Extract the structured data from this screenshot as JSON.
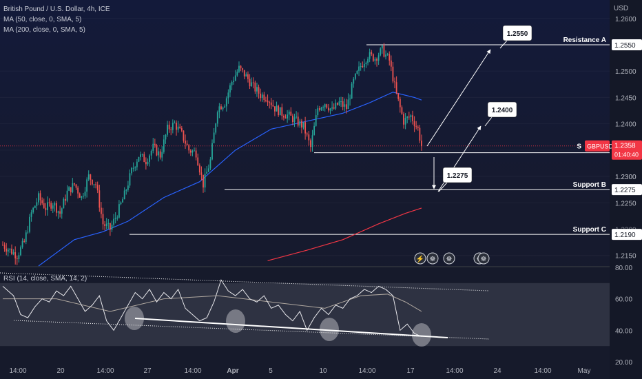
{
  "legend": {
    "title": "British Pound / U.S. Dollar, 4h, ICE",
    "ma50": "MA (50, close, 0, SMA, 5)",
    "ma200": "MA (200, close, 0, SMA, 5)"
  },
  "rsi_legend": "RSI (14, close, SMA, 14, 2)",
  "currency": "USD",
  "colors": {
    "bull": "#26a69a",
    "bear": "#ef5350",
    "ma50": "#2962ff",
    "ma200": "#f23645",
    "level": "#ffffff",
    "price_badge": "#f23645"
  },
  "chart_data": [
    {
      "type": "candlestick",
      "title": "British Pound / U.S. Dollar, 4h, ICE",
      "ylim": [
        1.213,
        1.2635
      ],
      "y_ticks": [
        1.215,
        1.225,
        1.23,
        1.235,
        1.24,
        1.245,
        1.25,
        1.26
      ],
      "x_ticks": [
        "14:00",
        "20",
        "14:00",
        "27",
        "14:00",
        "Apr",
        "5",
        "10",
        "14:00",
        "17",
        "14:00",
        "24",
        "14:00",
        "May"
      ],
      "current_price": {
        "symbol": "GBPUSD",
        "value": "1.2358",
        "countdown": "01:40:40"
      },
      "levels": [
        {
          "name": "Resistance A",
          "value": 1.255,
          "label": "1.2550"
        },
        {
          "name": "",
          "value": 1.2345,
          "label": "1.2345"
        },
        {
          "name": "Support B",
          "value": 1.2275,
          "label": "1.2275"
        },
        {
          "name": "Support C",
          "value": 1.219,
          "label": "1.2190"
        }
      ],
      "targets": [
        "1.2550",
        "1.2400",
        "1.2275"
      ],
      "level_tag_prefix": "S",
      "tick_marks": [
        "1.2300",
        "1.2200"
      ],
      "close_path": [
        [
          0,
          1.217
        ],
        [
          4,
          1.216
        ],
        [
          8,
          1.215
        ],
        [
          12,
          1.2175
        ],
        [
          16,
          1.223
        ],
        [
          20,
          1.226
        ],
        [
          24,
          1.224
        ],
        [
          28,
          1.225
        ],
        [
          32,
          1.223
        ],
        [
          36,
          1.227
        ],
        [
          40,
          1.2285
        ],
        [
          44,
          1.226
        ],
        [
          48,
          1.23
        ],
        [
          52,
          1.2285
        ],
        [
          56,
          1.221
        ],
        [
          60,
          1.22
        ],
        [
          64,
          1.223
        ],
        [
          68,
          1.2265
        ],
        [
          72,
          1.231
        ],
        [
          76,
          1.234
        ],
        [
          80,
          1.233
        ],
        [
          84,
          1.2355
        ],
        [
          88,
          1.234
        ],
        [
          92,
          1.239
        ],
        [
          96,
          1.24
        ],
        [
          100,
          1.238
        ],
        [
          104,
          1.235
        ],
        [
          108,
          1.2345
        ],
        [
          112,
          1.2285
        ],
        [
          116,
          1.233
        ],
        [
          120,
          1.243
        ],
        [
          124,
          1.244
        ],
        [
          128,
          1.248
        ],
        [
          132,
          1.2505
        ],
        [
          136,
          1.249
        ],
        [
          140,
          1.247
        ],
        [
          144,
          1.2455
        ],
        [
          148,
          1.245
        ],
        [
          152,
          1.243
        ],
        [
          156,
          1.242
        ],
        [
          160,
          1.2415
        ],
        [
          164,
          1.2405
        ],
        [
          168,
          1.2395
        ],
        [
          172,
          1.2355
        ],
        [
          176,
          1.243
        ],
        [
          180,
          1.244
        ],
        [
          184,
          1.2425
        ],
        [
          188,
          1.244
        ],
        [
          192,
          1.243
        ],
        [
          196,
          1.248
        ],
        [
          200,
          1.251
        ],
        [
          204,
          1.253
        ],
        [
          208,
          1.2525
        ],
        [
          212,
          1.254
        ],
        [
          216,
          1.252
        ],
        [
          220,
          1.2455
        ],
        [
          224,
          1.2405
        ],
        [
          228,
          1.2415
        ],
        [
          232,
          1.239
        ],
        [
          234,
          1.2358
        ]
      ],
      "ma50": [
        [
          20,
          1.213
        ],
        [
          40,
          1.218
        ],
        [
          56,
          1.2195
        ],
        [
          70,
          1.2215
        ],
        [
          90,
          1.226
        ],
        [
          110,
          1.229
        ],
        [
          130,
          1.235
        ],
        [
          150,
          1.239
        ],
        [
          170,
          1.2405
        ],
        [
          190,
          1.242
        ],
        [
          205,
          1.244
        ],
        [
          218,
          1.246
        ],
        [
          230,
          1.245
        ],
        [
          234,
          1.2445
        ]
      ],
      "ma200": [
        [
          148,
          1.214
        ],
        [
          170,
          1.216
        ],
        [
          190,
          1.218
        ],
        [
          210,
          1.221
        ],
        [
          225,
          1.223
        ],
        [
          234,
          1.224
        ]
      ]
    },
    {
      "type": "line",
      "title": "RSI (14, close, SMA, 14, 2)",
      "ylim": [
        20,
        80
      ],
      "y_ticks": [
        20,
        40,
        60,
        80
      ],
      "rsi": [
        [
          0,
          68
        ],
        [
          6,
          62
        ],
        [
          10,
          50
        ],
        [
          14,
          48
        ],
        [
          18,
          55
        ],
        [
          22,
          60
        ],
        [
          26,
          58
        ],
        [
          30,
          65
        ],
        [
          34,
          62
        ],
        [
          38,
          68
        ],
        [
          42,
          60
        ],
        [
          46,
          52
        ],
        [
          50,
          56
        ],
        [
          54,
          62
        ],
        [
          58,
          46
        ],
        [
          62,
          40
        ],
        [
          66,
          48
        ],
        [
          70,
          56
        ],
        [
          74,
          64
        ],
        [
          78,
          60
        ],
        [
          82,
          66
        ],
        [
          86,
          58
        ],
        [
          90,
          64
        ],
        [
          94,
          60
        ],
        [
          98,
          66
        ],
        [
          102,
          54
        ],
        [
          106,
          50
        ],
        [
          110,
          46
        ],
        [
          114,
          48
        ],
        [
          118,
          58
        ],
        [
          122,
          72
        ],
        [
          126,
          65
        ],
        [
          130,
          62
        ],
        [
          134,
          66
        ],
        [
          138,
          60
        ],
        [
          142,
          58
        ],
        [
          146,
          62
        ],
        [
          150,
          54
        ],
        [
          154,
          56
        ],
        [
          158,
          50
        ],
        [
          162,
          46
        ],
        [
          166,
          52
        ],
        [
          170,
          40
        ],
        [
          174,
          48
        ],
        [
          178,
          54
        ],
        [
          182,
          50
        ],
        [
          186,
          56
        ],
        [
          190,
          54
        ],
        [
          194,
          60
        ],
        [
          198,
          62
        ],
        [
          202,
          66
        ],
        [
          206,
          64
        ],
        [
          210,
          68
        ],
        [
          214,
          66
        ],
        [
          218,
          62
        ],
        [
          222,
          40
        ],
        [
          226,
          44
        ],
        [
          230,
          38
        ],
        [
          234,
          36
        ]
      ],
      "rsi_ma": [
        [
          0,
          60
        ],
        [
          30,
          60
        ],
        [
          60,
          52
        ],
        [
          90,
          60
        ],
        [
          120,
          62
        ],
        [
          150,
          58
        ],
        [
          180,
          54
        ],
        [
          200,
          62
        ],
        [
          215,
          63
        ],
        [
          225,
          58
        ],
        [
          234,
          52
        ]
      ]
    }
  ]
}
